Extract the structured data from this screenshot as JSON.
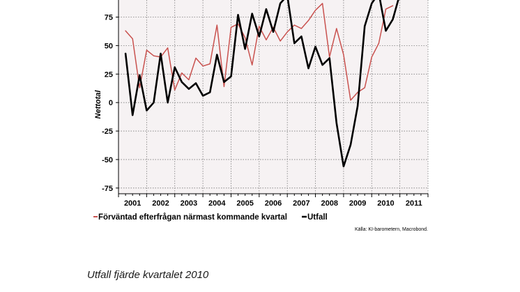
{
  "chart_data": {
    "type": "line",
    "ylabel": "Nettotal",
    "xlabel": "",
    "ylim": [
      -80,
      90
    ],
    "yticks": [
      -75,
      -50,
      -25,
      0,
      25,
      50,
      75
    ],
    "x_categories": [
      "2001",
      "2002",
      "2003",
      "2004",
      "2005",
      "2006",
      "2007",
      "2008",
      "2009",
      "2010",
      "2011"
    ],
    "x_start": 2000.75,
    "x_end": 2011.75,
    "grid": true,
    "legend_position": "bottom-left",
    "series": [
      {
        "name": "Förväntad efterfrågan närmast kommande kvartal",
        "color": "#c9524f",
        "x": [
          2001.0,
          2001.25,
          2001.5,
          2001.75,
          2002.0,
          2002.25,
          2002.5,
          2002.75,
          2003.0,
          2003.25,
          2003.5,
          2003.75,
          2004.0,
          2004.25,
          2004.5,
          2004.75,
          2005.0,
          2005.25,
          2005.5,
          2005.75,
          2006.0,
          2006.25,
          2006.5,
          2006.75,
          2007.0,
          2007.25,
          2007.5,
          2007.75,
          2008.0,
          2008.25,
          2008.5,
          2008.75,
          2009.0,
          2009.25,
          2009.5,
          2009.75,
          2010.0,
          2010.25,
          2010.5
        ],
        "y": [
          63,
          56,
          13,
          46,
          41,
          40,
          48,
          11,
          26,
          20,
          39,
          32,
          34,
          68,
          14,
          66,
          69,
          57,
          33,
          67,
          55,
          66,
          54,
          62,
          68,
          65,
          72,
          81,
          87,
          40,
          65,
          42,
          2,
          9,
          13,
          40,
          52,
          82,
          85
        ]
      },
      {
        "name": "Utfall",
        "color": "#000000",
        "x": [
          2001.0,
          2001.25,
          2001.5,
          2001.75,
          2002.0,
          2002.25,
          2002.5,
          2002.75,
          2003.0,
          2003.25,
          2003.5,
          2003.75,
          2004.0,
          2004.25,
          2004.5,
          2004.75,
          2005.0,
          2005.25,
          2005.5,
          2005.75,
          2006.0,
          2006.25,
          2006.5,
          2006.75,
          2007.0,
          2007.25,
          2007.5,
          2007.75,
          2008.0,
          2008.25,
          2008.5,
          2008.75,
          2009.0,
          2009.25,
          2009.5,
          2009.75,
          2010.0,
          2010.25,
          2010.5,
          2010.75
        ],
        "y": [
          43,
          -11,
          24,
          -7,
          0,
          43,
          0,
          31,
          18,
          12,
          17,
          6,
          9,
          42,
          18,
          23,
          77,
          47,
          78,
          58,
          82,
          62,
          87,
          94,
          52,
          58,
          30,
          49,
          33,
          39,
          -18,
          -56,
          -37,
          -3,
          67,
          87,
          96,
          63,
          73,
          95
        ]
      }
    ],
    "source": "Källa: KI-barometern, Macrobond."
  },
  "caption": "Utfall fjärde kvartalet 2010"
}
